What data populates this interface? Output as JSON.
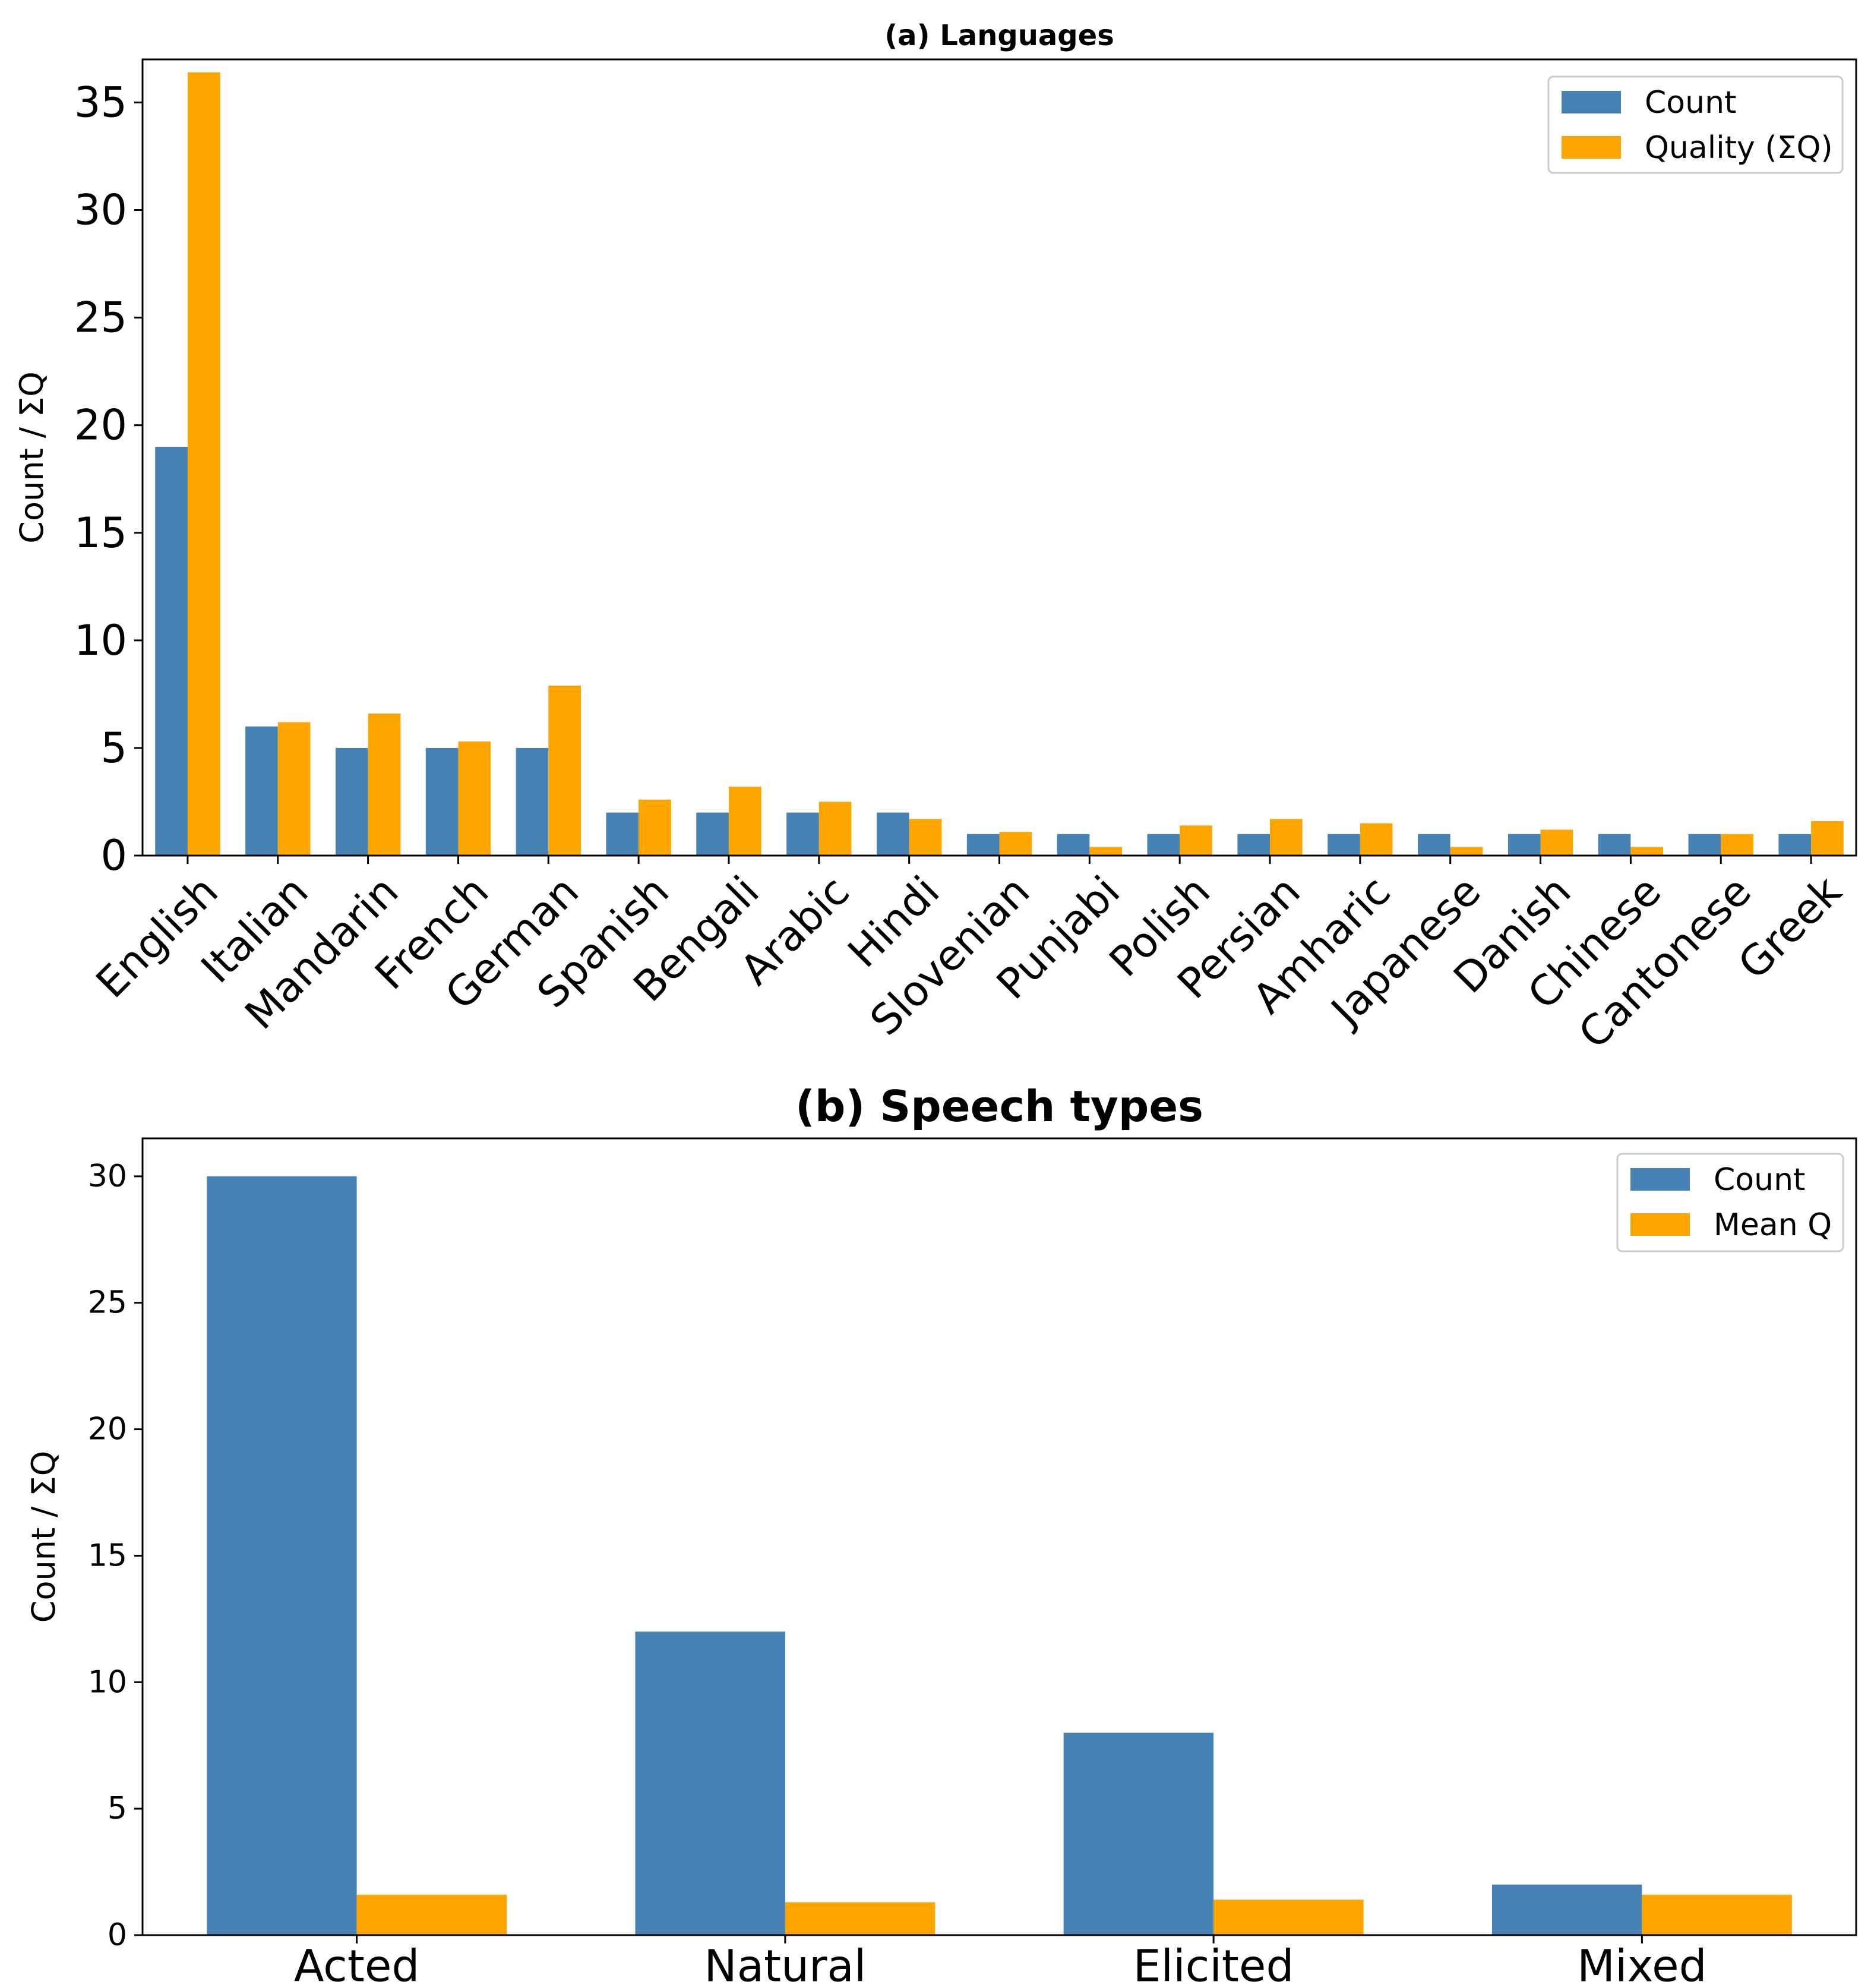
{
  "colors": {
    "count": "#4682b4",
    "quality": "#ffa500"
  },
  "chart_data": [
    {
      "type": "bar",
      "title": "(a) Languages",
      "xlabel": "",
      "ylabel": "Count / ΣQ",
      "ylim": [
        0,
        37
      ],
      "yticks": [
        "0",
        "5",
        "10",
        "15",
        "20",
        "25",
        "30",
        "35"
      ],
      "legend_position": "top-right",
      "categories": [
        "English",
        "Italian",
        "Mandarin",
        "French",
        "German",
        "Spanish",
        "Bengali",
        "Arabic",
        "Hindi",
        "Slovenian",
        "Punjabi",
        "Polish",
        "Persian",
        "Amharic",
        "Japanese",
        "Danish",
        "Chinese",
        "Cantonese",
        "Greek"
      ],
      "series": [
        {
          "name": "Count",
          "values": [
            19,
            6,
            5,
            5,
            5,
            2,
            2,
            2,
            2,
            1,
            1,
            1,
            1,
            1,
            1,
            1,
            1,
            1,
            1
          ]
        },
        {
          "name": "Quality (ΣQ)",
          "values": [
            36.4,
            6.2,
            6.6,
            5.3,
            7.9,
            2.6,
            3.2,
            2.5,
            1.7,
            1.1,
            0.4,
            1.4,
            1.7,
            1.5,
            0.4,
            1.2,
            0.4,
            1.0,
            1.6
          ]
        }
      ]
    },
    {
      "type": "bar",
      "title": "(b) Speech types",
      "xlabel": "",
      "ylabel": "Count / ΣQ",
      "ylim": [
        0,
        31.5
      ],
      "yticks": [
        "0",
        "5",
        "10",
        "15",
        "20",
        "25",
        "30"
      ],
      "legend_position": "top-right",
      "categories": [
        "Acted",
        "Natural",
        "Elicited",
        "Mixed"
      ],
      "series": [
        {
          "name": "Count",
          "values": [
            30,
            12,
            8,
            2
          ]
        },
        {
          "name": "Mean Q",
          "values": [
            1.6,
            1.3,
            1.4,
            1.6
          ]
        }
      ]
    }
  ]
}
